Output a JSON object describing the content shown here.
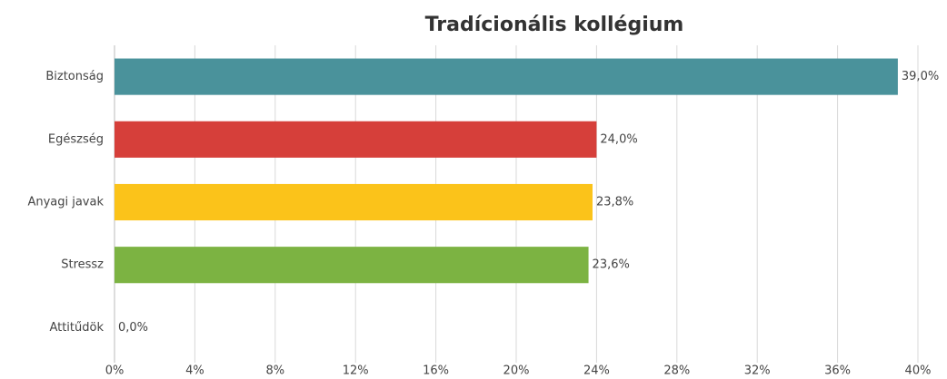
{
  "chart_data": {
    "type": "bar",
    "orientation": "horizontal",
    "title": "Tradícionális kollégium",
    "categories": [
      "Biztonság",
      "Egészség",
      "Anyagi javak",
      "Stressz",
      "Attitűdök"
    ],
    "values": [
      39.0,
      24.0,
      23.8,
      23.6,
      0.0
    ],
    "value_labels": [
      "39,0%",
      "24,0%",
      "23,8%",
      "23,6%",
      "0,0%"
    ],
    "colors": [
      "#4a929b",
      "#d63f3a",
      "#fbc31a",
      "#7cb342",
      "#7cb342"
    ],
    "xlim": [
      0,
      40
    ],
    "xticks": [
      {
        "value": 0,
        "label": "0%"
      },
      {
        "value": 4,
        "label": "4%"
      },
      {
        "value": 8,
        "label": "8%"
      },
      {
        "value": 12,
        "label": "12%"
      },
      {
        "value": 16,
        "label": "16%"
      },
      {
        "value": 20,
        "label": "20%"
      },
      {
        "value": 24,
        "label": "24%"
      },
      {
        "value": 28,
        "label": "28%"
      },
      {
        "value": 32,
        "label": "32%"
      },
      {
        "value": 36,
        "label": "36%"
      },
      {
        "value": 40,
        "label": "40%"
      }
    ],
    "grid": true
  }
}
